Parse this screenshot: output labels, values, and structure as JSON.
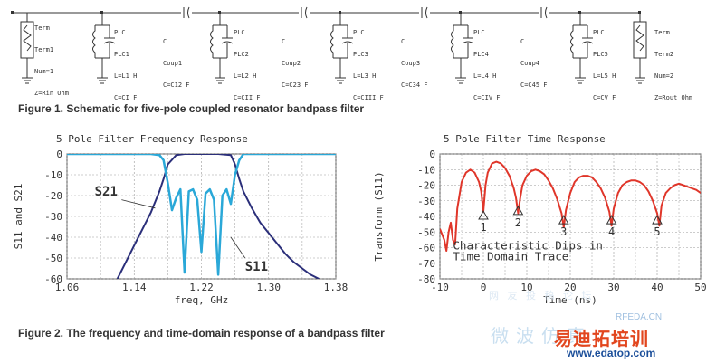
{
  "schematic": {
    "term_left": {
      "type": "Term",
      "name": "Term1",
      "num": "Num=1",
      "z": "Z=Rin Ohm"
    },
    "term_right": {
      "type": "Term",
      "name": "Term2",
      "num": "Num=2",
      "z": "Z=Rout Ohm"
    },
    "resonators": [
      {
        "type": "PLC",
        "name": "PLC1",
        "l": "L=L1 H",
        "c": "C=CI F"
      },
      {
        "type": "PLC",
        "name": "PLC2",
        "l": "L=L2 H",
        "c": "C=CII F"
      },
      {
        "type": "PLC",
        "name": "PLC3",
        "l": "L=L3 H",
        "c": "C=CIII F"
      },
      {
        "type": "PLC",
        "name": "PLC4",
        "l": "L=L4 H",
        "c": "C=CIV F"
      },
      {
        "type": "PLC",
        "name": "PLC5",
        "l": "L=L5 H",
        "c": "C=CV F"
      }
    ],
    "couplers": [
      {
        "type": "C",
        "name": "Coup1",
        "c": "C=C12 F"
      },
      {
        "type": "C",
        "name": "Coup2",
        "c": "C=C23 F"
      },
      {
        "type": "C",
        "name": "Coup3",
        "c": "C=C34 F"
      },
      {
        "type": "C",
        "name": "Coup4",
        "c": "C=C45 F"
      }
    ]
  },
  "figure1": {
    "caption": "Figure 1. Schematic for five-pole coupled resonator bandpass filter"
  },
  "figure2": {
    "caption": "Figure 2. The frequency and time-domain response of a bandpass filter"
  },
  "chart_data": [
    {
      "type": "line",
      "title": "5 Pole Filter Frequency Response",
      "xlabel": "freq, GHz",
      "ylabel": "S11 and S21",
      "xlim": [
        1.06,
        1.38
      ],
      "ylim": [
        -60,
        0
      ],
      "xticks": [
        "1.06",
        "1.14",
        "1.22",
        "1.30",
        "1.38"
      ],
      "yticks": [
        "0",
        "-10",
        "-20",
        "-30",
        "-40",
        "-50",
        "-60"
      ],
      "grid": true,
      "annotations": [
        "S21",
        "S11"
      ],
      "series": [
        {
          "name": "S21",
          "color": "#2b2f7a",
          "x": [
            1.12,
            1.13,
            1.14,
            1.15,
            1.16,
            1.17,
            1.175,
            1.18,
            1.19,
            1.2,
            1.22,
            1.24,
            1.255,
            1.26,
            1.265,
            1.27,
            1.28,
            1.29,
            1.3,
            1.31,
            1.32,
            1.33,
            1.34,
            1.35,
            1.36
          ],
          "y": [
            -60,
            -52,
            -44,
            -36,
            -28,
            -18,
            -12,
            -5,
            -0.5,
            0,
            0,
            0,
            -0.5,
            -5,
            -12,
            -18,
            -26,
            -33,
            -38,
            -43,
            -48,
            -52,
            -55,
            -58,
            -60
          ]
        },
        {
          "name": "S11",
          "color": "#2aa8d8",
          "x": [
            1.06,
            1.1,
            1.14,
            1.16,
            1.17,
            1.175,
            1.18,
            1.185,
            1.19,
            1.195,
            1.2,
            1.205,
            1.21,
            1.215,
            1.22,
            1.225,
            1.23,
            1.235,
            1.24,
            1.245,
            1.25,
            1.255,
            1.26,
            1.265,
            1.27,
            1.28,
            1.3,
            1.34,
            1.38
          ],
          "y": [
            0,
            0,
            0,
            0,
            -0.5,
            -3,
            -14,
            -27,
            -21,
            -17,
            -57,
            -18,
            -17,
            -22,
            -47,
            -19,
            -17,
            -22,
            -58,
            -20,
            -17,
            -24,
            -10,
            -3,
            0,
            0,
            0,
            0,
            0
          ]
        }
      ]
    },
    {
      "type": "line",
      "title": "5 Pole Filter Time Response",
      "xlabel": "Time (ns)",
      "ylabel": "Transform (S11)",
      "xlim": [
        -10,
        50
      ],
      "ylim": [
        -80,
        0
      ],
      "xticks": [
        "-10",
        "0",
        "10",
        "20",
        "30",
        "40",
        "50"
      ],
      "yticks": [
        "0",
        "-10",
        "-20",
        "-30",
        "-40",
        "-50",
        "-60",
        "-70",
        "-80"
      ],
      "grid": true,
      "annotation_text": [
        "Characteristic Dips in",
        "Time Domain Trace"
      ],
      "markers": [
        {
          "label": "1",
          "x": 0,
          "y": -40
        },
        {
          "label": "2",
          "x": 8,
          "y": -37
        },
        {
          "label": "3",
          "x": 18.5,
          "y": -43
        },
        {
          "label": "4",
          "x": 29.5,
          "y": -43
        },
        {
          "label": "5",
          "x": 40,
          "y": -43
        }
      ],
      "series": [
        {
          "name": "Transform (S11)",
          "color": "#e0362a",
          "x": [
            -10,
            -9,
            -8.5,
            -8,
            -7.5,
            -7,
            -6.5,
            -6,
            -5,
            -4,
            -3,
            -2,
            -1,
            -0.5,
            0,
            0.5,
            1,
            2,
            3,
            4,
            5,
            6,
            7,
            7.5,
            8,
            8.5,
            9,
            10,
            11,
            12,
            13,
            14,
            15,
            16,
            17,
            18,
            18.5,
            19,
            20,
            21,
            22,
            23,
            24,
            25,
            26,
            27,
            28,
            29,
            29.5,
            30,
            31,
            32,
            33,
            34,
            35,
            36,
            37,
            38,
            39,
            40,
            40.5,
            41,
            42,
            43,
            44,
            45,
            46,
            47,
            48,
            49,
            50
          ],
          "y": [
            -48,
            -55,
            -62,
            -50,
            -44,
            -55,
            -58,
            -35,
            -18,
            -12,
            -10,
            -12,
            -18,
            -24,
            -37,
            -20,
            -12,
            -6,
            -5,
            -6,
            -9,
            -14,
            -22,
            -28,
            -38,
            -28,
            -20,
            -14,
            -11,
            -10,
            -11,
            -13,
            -17,
            -22,
            -29,
            -38,
            -47,
            -36,
            -25,
            -18,
            -15,
            -14,
            -14,
            -15,
            -18,
            -22,
            -28,
            -37,
            -46,
            -35,
            -25,
            -20,
            -18,
            -17,
            -17,
            -18,
            -20,
            -24,
            -30,
            -38,
            -46,
            -33,
            -25,
            -22,
            -20,
            -19,
            -20,
            -21,
            -22,
            -23,
            -25
          ]
        }
      ]
    }
  ],
  "watermark": {
    "cn_logo": "易迪拓培训",
    "cn_faint": "微波仿真",
    "url": "www.edatop.com",
    "rf": "RFEDA.CN",
    "faint": "网 友 投 稿 论 坛"
  },
  "colors": {
    "s21": "#2b2f7a",
    "s11": "#2aa8d8",
    "time": "#e0362a",
    "grid": "#999999"
  }
}
